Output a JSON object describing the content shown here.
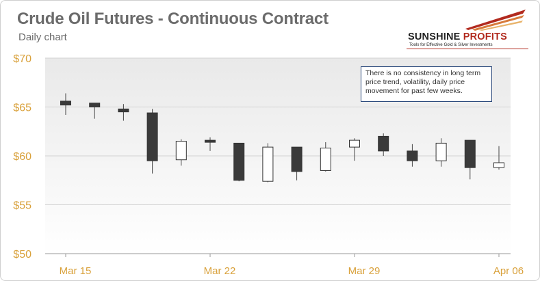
{
  "header": {
    "title": "Crude Oil Futures - Continuous Contract",
    "subtitle": "Daily chart"
  },
  "logo": {
    "name_part1": "SUNSHINE",
    "name_part2": "PROFITS",
    "tagline": "Tools for Effective Gold & Silver Investments"
  },
  "note": {
    "text": "There is no consistency in long term price trend, volatility, daily price movement for past few weeks."
  },
  "colors": {
    "axis_label": "#d9a13b",
    "bear_candle": "#3a3a3a",
    "bull_candle": "#ffffff",
    "wick": "#444444",
    "brand_red": "#b22a1e"
  },
  "chart_data": {
    "type": "candlestick",
    "ylim": [
      50,
      70
    ],
    "y_ticks": [
      "$70",
      "$65",
      "$60",
      "$55",
      "$50"
    ],
    "y_tick_values": [
      70,
      65,
      60,
      55,
      50
    ],
    "x_tick_labels": [
      "Mar 15",
      "Mar 22",
      "Mar 29",
      "Apr 06"
    ],
    "x_tick_index": [
      0,
      5,
      10,
      15
    ],
    "grid": true,
    "candles": [
      {
        "open": 65.6,
        "high": 66.4,
        "low": 64.2,
        "close": 65.2
      },
      {
        "open": 65.4,
        "high": 65.4,
        "low": 63.8,
        "close": 65.0
      },
      {
        "open": 64.8,
        "high": 65.3,
        "low": 63.6,
        "close": 64.5
      },
      {
        "open": 64.4,
        "high": 64.8,
        "low": 58.2,
        "close": 59.5
      },
      {
        "open": 59.6,
        "high": 61.7,
        "low": 59.0,
        "close": 61.5
      },
      {
        "open": 61.6,
        "high": 61.9,
        "low": 60.5,
        "close": 61.4
      },
      {
        "open": 61.3,
        "high": 61.3,
        "low": 57.4,
        "close": 57.5
      },
      {
        "open": 57.4,
        "high": 61.3,
        "low": 57.3,
        "close": 60.9
      },
      {
        "open": 60.9,
        "high": 60.9,
        "low": 57.5,
        "close": 58.4
      },
      {
        "open": 58.5,
        "high": 61.4,
        "low": 58.4,
        "close": 60.8
      },
      {
        "open": 60.9,
        "high": 61.8,
        "low": 59.5,
        "close": 61.6
      },
      {
        "open": 62.0,
        "high": 62.3,
        "low": 60.0,
        "close": 60.5
      },
      {
        "open": 60.5,
        "high": 61.2,
        "low": 58.9,
        "close": 59.5
      },
      {
        "open": 59.5,
        "high": 61.8,
        "low": 58.9,
        "close": 61.3
      },
      {
        "open": 61.6,
        "high": 61.6,
        "low": 57.6,
        "close": 58.8
      },
      {
        "open": 58.8,
        "high": 61.0,
        "low": 58.6,
        "close": 59.3
      }
    ]
  }
}
